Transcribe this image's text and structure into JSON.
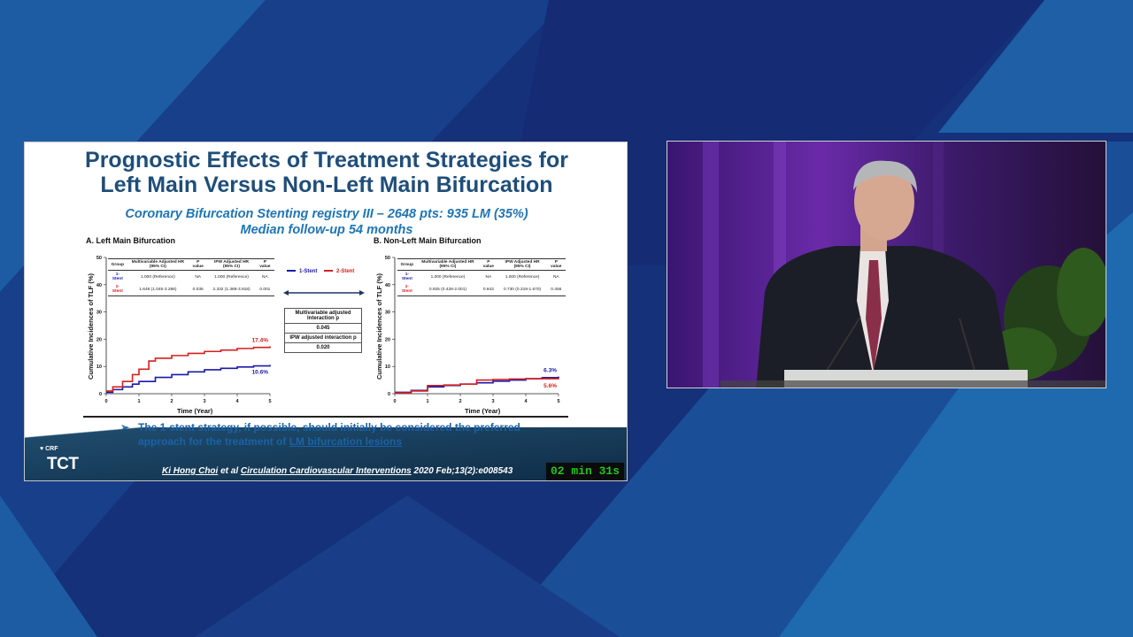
{
  "slide": {
    "title_line1": "Prognostic Effects of Treatment Strategies for",
    "title_line2": "Left Main Versus Non-Left Main Bifurcation",
    "subtitle_line1": "Coronary Bifurcation Stenting registry III – 2648 pts: 935 LM (35%)",
    "subtitle_line2": "Median follow-up 54 months",
    "panel_a_label": "A. Left Main Bifurcation",
    "panel_b_label": "B. Non-Left Main Bifurcation",
    "y_axis_label": "Cumulative Incidences of TLF (%)",
    "x_axis_label": "Time (Year)",
    "legend": {
      "one_stent": "1-Stent",
      "two_stent": "2-Stent"
    },
    "table_headers": [
      "Group",
      "Multivariable Adjusted HR (95% CI)",
      "P value",
      "IPW Adjusted HR (95% CI)",
      "P value"
    ],
    "table_a": [
      [
        "1-Stent",
        "1.000 (Reference)",
        "NA",
        "1.000 (Reference)",
        "NA"
      ],
      [
        "2-Stent",
        "1.648 (1.045-3.286)",
        "0.035",
        "2.332 (1.388-3.918)",
        "0.001"
      ]
    ],
    "table_b": [
      [
        "1-Stent",
        "1.000 (Reference)",
        "NA",
        "1.000 (Reference)",
        "NA"
      ],
      [
        "2-Stent",
        "0.925 (0.428-2.001)",
        "0.843",
        "0.730 (0.319-1.670)",
        "0.456"
      ]
    ],
    "interaction": {
      "mv_label": "Multivariable adjusted Interaction p",
      "mv_value": "0.045",
      "ipw_label": "IPW adjusted interaction p",
      "ipw_value": "0.020"
    },
    "conclusion_bullet": "➢",
    "conclusion_pre": "The 1-stent strategy, if possible, should initially be considered the preferred approach for the treatment of ",
    "conclusion_underlined": "LM bifurcation lesions",
    "citation_author": "Ki Hong Choi",
    "citation_mid": " et al ",
    "citation_journal": "Circulation Cardiovascular Interventions",
    "citation_tail": " 2020 Feb;13(2):e008543",
    "logo_crf": "CRF",
    "logo_tct": "TCT",
    "timer": "02 min 31s"
  },
  "chart_data": [
    {
      "type": "line",
      "title": "A. Left Main Bifurcation",
      "xlabel": "Time (Year)",
      "ylabel": "Cumulative Incidences of TLF (%)",
      "xlim": [
        0,
        5
      ],
      "ylim": [
        0,
        50
      ],
      "x_ticks": [
        0,
        1,
        2,
        3,
        4,
        5
      ],
      "y_ticks": [
        0,
        10,
        20,
        30,
        40,
        50
      ],
      "series": [
        {
          "name": "1-Stent",
          "color": "#1a1aa8",
          "end_label": "10.6%",
          "x": [
            0,
            0.2,
            0.5,
            0.8,
            1,
            1.5,
            2,
            2.5,
            3,
            3.5,
            4,
            4.5,
            5
          ],
          "y": [
            0.5,
            1.5,
            2.5,
            3.5,
            4.5,
            6,
            7,
            8,
            8.8,
            9.3,
            9.8,
            10.2,
            10.6
          ]
        },
        {
          "name": "2-Stent",
          "color": "#d42020",
          "end_label": "17.4%",
          "x": [
            0,
            0.2,
            0.5,
            0.8,
            1,
            1.3,
            1.5,
            2,
            2.5,
            3,
            3.5,
            4,
            4.5,
            5
          ],
          "y": [
            1,
            2.5,
            4.5,
            7,
            9,
            12,
            13,
            14,
            14.8,
            15.5,
            16,
            16.6,
            17,
            17.4
          ]
        }
      ]
    },
    {
      "type": "line",
      "title": "B. Non-Left Main Bifurcation",
      "xlabel": "Time (Year)",
      "ylabel": "Cumulative Incidences of TLF (%)",
      "xlim": [
        0,
        5
      ],
      "ylim": [
        0,
        50
      ],
      "x_ticks": [
        0,
        1,
        2,
        3,
        4,
        5
      ],
      "y_ticks": [
        0,
        10,
        20,
        30,
        40,
        50
      ],
      "series": [
        {
          "name": "1-Stent",
          "color": "#1a1aa8",
          "end_label": "6.3%",
          "x": [
            0,
            0.5,
            1,
            1.5,
            2,
            2.5,
            3,
            3.5,
            4,
            4.5,
            5
          ],
          "y": [
            0.5,
            1.2,
            2.5,
            3,
            3.5,
            4,
            4.6,
            5,
            5.5,
            5.9,
            6.3
          ]
        },
        {
          "name": "2-Stent",
          "color": "#d42020",
          "end_label": "5.6%",
          "x": [
            0,
            0.5,
            1,
            1.5,
            2,
            2.5,
            3,
            3.5,
            4,
            4.5,
            5
          ],
          "y": [
            0.3,
            1,
            3,
            3.2,
            3.5,
            5,
            5.2,
            5.4,
            5.5,
            5.5,
            5.6
          ]
        }
      ]
    }
  ]
}
